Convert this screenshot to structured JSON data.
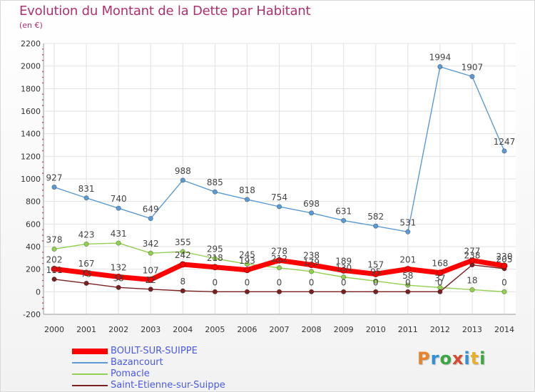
{
  "header": {
    "title": "Evolution du Montant de la Dette par Habitant",
    "unit": "(en €)"
  },
  "logo": {
    "text": "Proxiti",
    "colors": [
      "#e8832a",
      "#2f8fd8",
      "#3aa742",
      "#d84a2f",
      "#2f8fd8",
      "#e8b02a",
      "#3aa742"
    ]
  },
  "chart_data": {
    "type": "line",
    "title": "Evolution du Montant de la Dette par Habitant",
    "subtitle": "(en €)",
    "xlabel": "",
    "ylabel": "",
    "x": [
      "2000",
      "2001",
      "2002",
      "2003",
      "2004",
      "2005",
      "2006",
      "2007",
      "2008",
      "2009",
      "2010",
      "2011",
      "2012",
      "2013",
      "2014"
    ],
    "ylim": [
      -200,
      2200
    ],
    "yticks": [
      "-200",
      "0",
      "200",
      "400",
      "600",
      "800",
      "1000",
      "1200",
      "1400",
      "1600",
      "1800",
      "2000",
      "2200"
    ],
    "grid": true,
    "legend_position": "bottom-left",
    "series": [
      {
        "name": "BOULT-SUR-SUIPPE",
        "color": "#ff0000",
        "values": [
          202,
          167,
          132,
          107,
          242,
          218,
          193,
          278,
          238,
          189,
          157,
          201,
          168,
          277,
          230
        ],
        "labels": [
          "202",
          "167",
          "132",
          "107",
          "242",
          "218",
          "193",
          "278",
          "238",
          "189",
          "157",
          "201",
          "168",
          "277",
          "230"
        ]
      },
      {
        "name": "Bazancourt",
        "color": "#5b9bd5",
        "values": [
          927,
          831,
          740,
          649,
          988,
          885,
          818,
          754,
          698,
          631,
          582,
          531,
          1994,
          1907,
          1247
        ],
        "labels": [
          "927",
          "831",
          "740",
          "649",
          "988",
          "885",
          "818",
          "754",
          "698",
          "631",
          "582",
          "531",
          "1994",
          "1907",
          "1247"
        ]
      },
      {
        "name": "Pomacle",
        "color": "#92d050",
        "values": [
          378,
          423,
          431,
          342,
          355,
          295,
          245,
          212,
          179,
          130,
          95,
          58,
          37,
          18,
          0
        ],
        "labels": [
          "378",
          "423",
          "431",
          "342",
          "355",
          "295",
          "245",
          "212",
          "179",
          "130",
          "95",
          "58",
          "37",
          "18",
          "0"
        ]
      },
      {
        "name": "Saint-Etienne-sur-Suippe",
        "color": "#7b2020",
        "values": [
          111,
          75,
          38,
          22,
          8,
          0,
          0,
          0,
          0,
          0,
          0,
          0,
          0,
          238,
          205
        ],
        "labels": [
          "111",
          "75",
          "38",
          "22",
          "8",
          "0",
          "0",
          "0",
          "0",
          "0",
          "0",
          "0",
          "0",
          "238",
          "205"
        ]
      }
    ]
  }
}
